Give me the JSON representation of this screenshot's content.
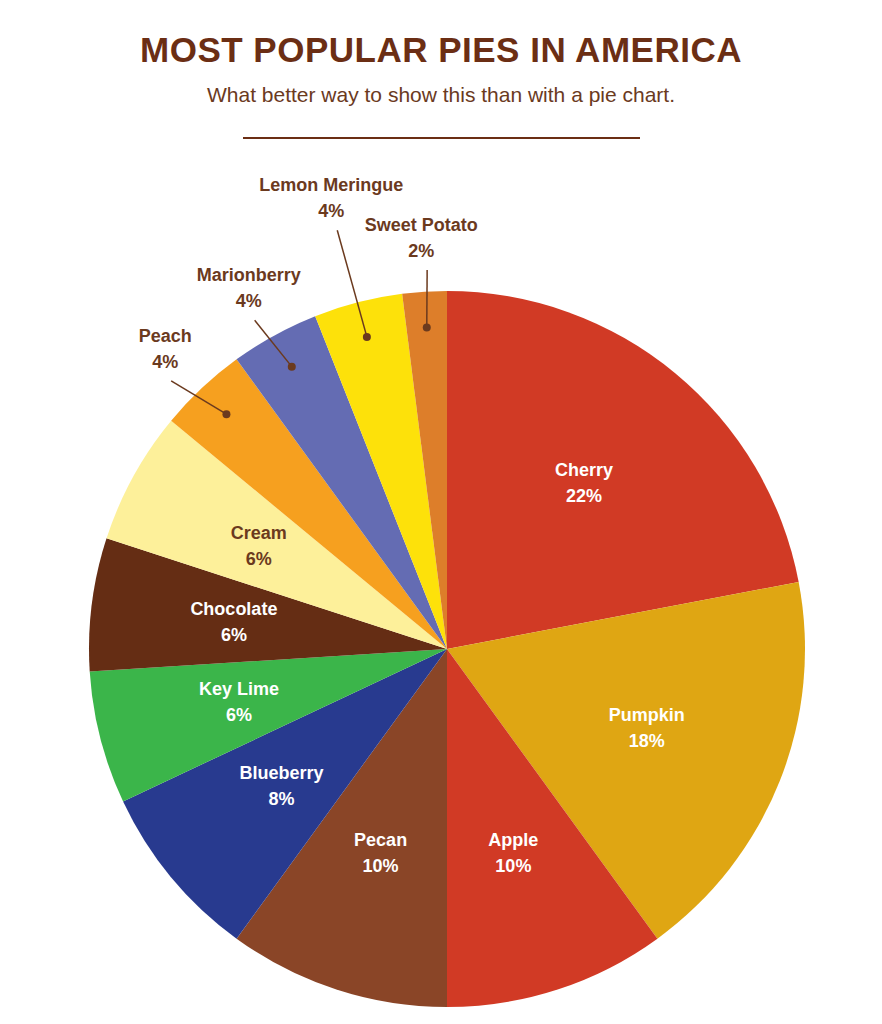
{
  "chart_data": {
    "type": "pie",
    "title": "MOST POPULAR PIES IN AMERICA",
    "subtitle": "What better way to show this than with a pie chart.",
    "categories": [
      "Cherry",
      "Pumpkin",
      "Apple",
      "Pecan",
      "Blueberry",
      "Key Lime",
      "Chocolate",
      "Cream",
      "Peach",
      "Marionberry",
      "Lemon Meringue",
      "Sweet Potato"
    ],
    "values": [
      22,
      18,
      10,
      10,
      8,
      6,
      6,
      6,
      4,
      4,
      4,
      2
    ],
    "value_labels": [
      "22%",
      "18%",
      "10%",
      "10%",
      "8%",
      "6%",
      "6%",
      "6%",
      "4%",
      "4%",
      "4%",
      "2%"
    ],
    "colors": [
      "#d13a25",
      "#dfa613",
      "#d13a25",
      "#8a4527",
      "#283a8f",
      "#3bb54a",
      "#652d14",
      "#fdf09a",
      "#f6a01f",
      "#646cb3",
      "#fde10a",
      "#dd7e2a"
    ],
    "data_labels": true
  }
}
